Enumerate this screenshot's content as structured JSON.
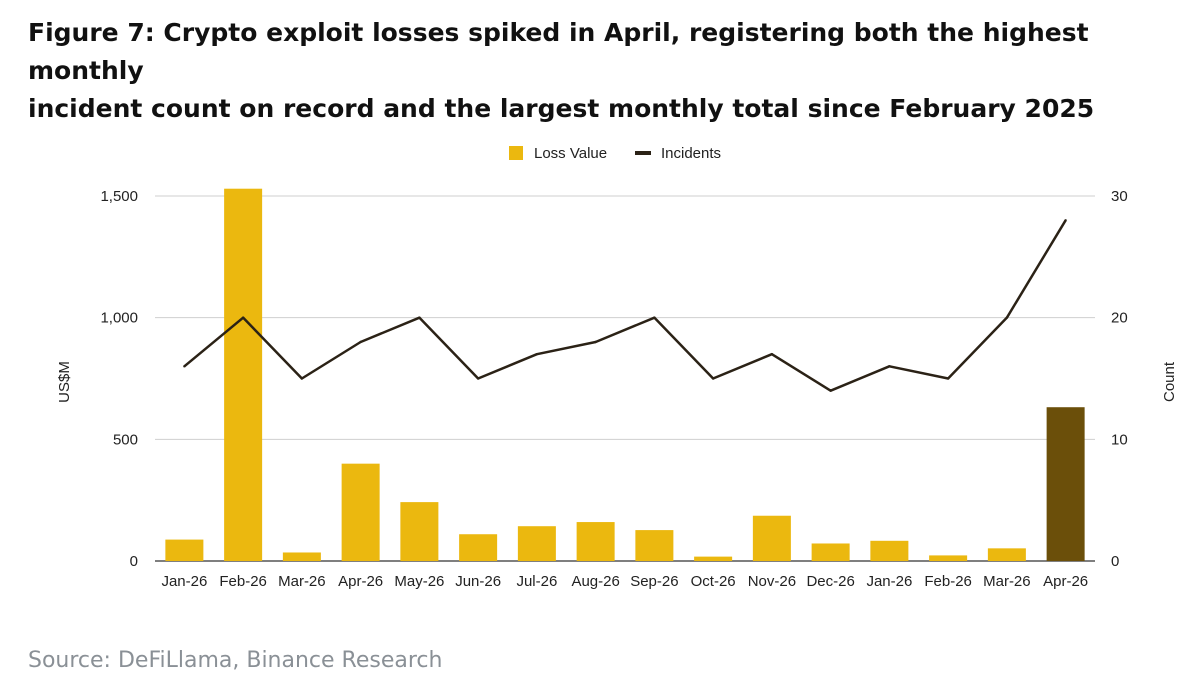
{
  "title": {
    "line1": "Figure 7: Crypto exploit losses spiked in April, registering both the highest monthly",
    "line2": "incident count on record and the largest monthly total since February 2025"
  },
  "source": "Source: DeFiLlama, Binance Research",
  "chart_data": {
    "type": "bar",
    "categories": [
      "Jan-26",
      "Feb-26",
      "Mar-26",
      "Apr-26",
      "May-26",
      "Jun-26",
      "Jul-26",
      "Aug-26",
      "Sep-26",
      "Oct-26",
      "Nov-26",
      "Dec-26",
      "Jan-26",
      "Feb-26",
      "Mar-26",
      "Apr-26"
    ],
    "series": [
      {
        "name": "Loss Value",
        "chart": "bar",
        "axis": "left",
        "color": "#EBB80F",
        "highlight_color": "#6B4F0A",
        "highlight_index": 15,
        "values": [
          88,
          1530,
          35,
          400,
          242,
          110,
          143,
          160,
          127,
          18,
          186,
          72,
          83,
          23,
          52,
          632
        ]
      },
      {
        "name": "Incidents",
        "chart": "line",
        "axis": "right",
        "color": "#2B2216",
        "values": [
          16,
          20,
          15,
          18,
          20,
          15,
          17,
          18,
          20,
          15,
          17,
          14,
          16,
          15,
          20,
          28
        ]
      }
    ],
    "ylabel": "US$M",
    "y2label": "Count",
    "ylim": [
      0,
      1500
    ],
    "y2lim": [
      0,
      30
    ],
    "yticks": [
      "0",
      "500",
      "1,000",
      "1,500"
    ],
    "y2ticks": [
      "0",
      "10",
      "20",
      "30"
    ],
    "grid": true,
    "legend": "top-center"
  }
}
